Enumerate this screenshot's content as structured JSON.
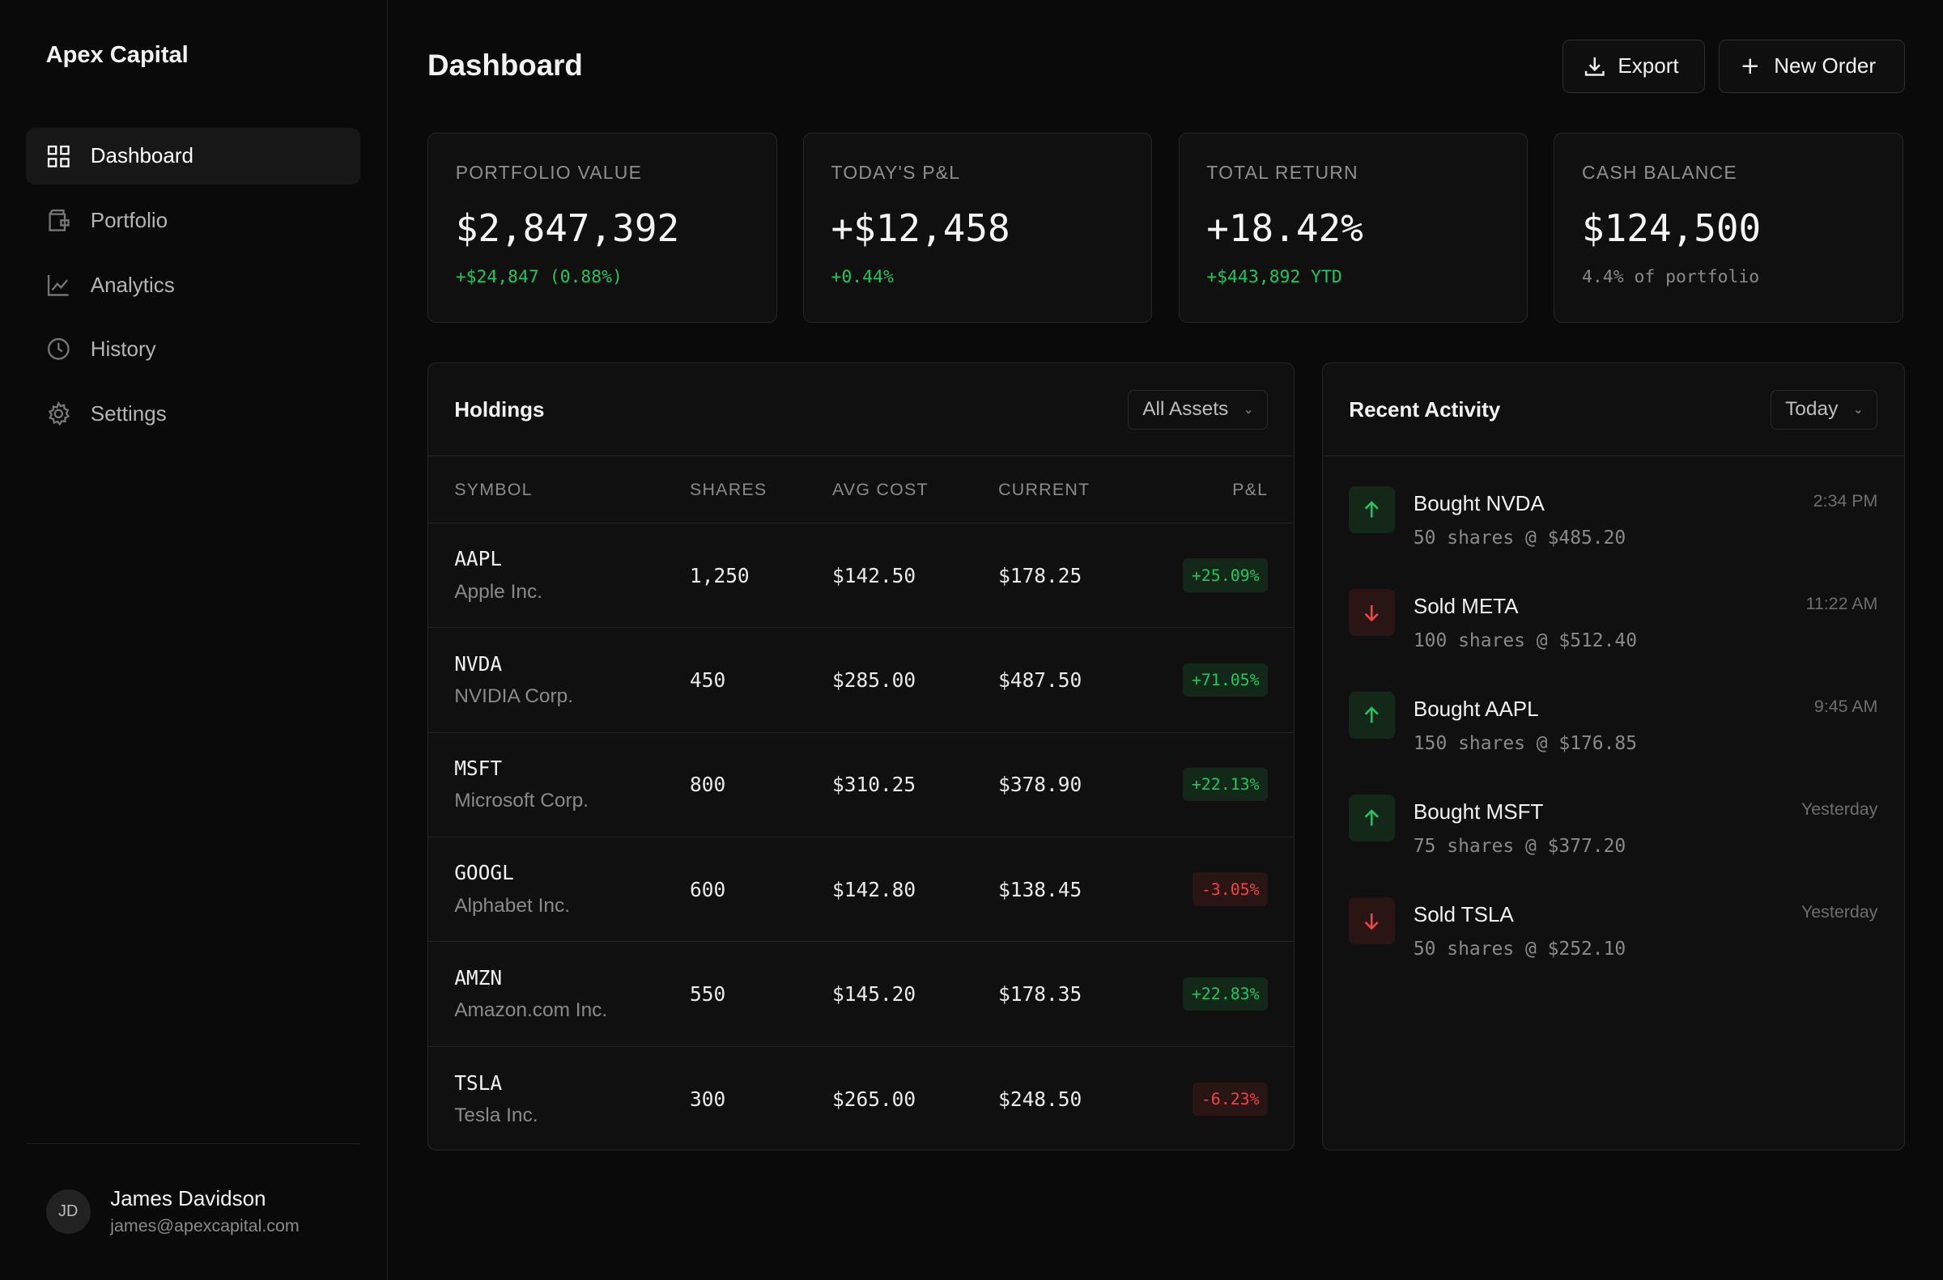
{
  "app": {
    "brand": "Apex Capital"
  },
  "sidebar": {
    "items": [
      {
        "label": "Dashboard",
        "icon": "grid-icon"
      },
      {
        "label": "Portfolio",
        "icon": "wallet-icon"
      },
      {
        "label": "Analytics",
        "icon": "chart-icon"
      },
      {
        "label": "History",
        "icon": "clock-icon"
      },
      {
        "label": "Settings",
        "icon": "gear-icon"
      }
    ],
    "user": {
      "initials": "JD",
      "name": "James Davidson",
      "email": "james@apexcapital.com"
    }
  },
  "header": {
    "title": "Dashboard",
    "export_label": "Export",
    "new_order_label": "New Order"
  },
  "stats": [
    {
      "label": "PORTFOLIO VALUE",
      "value": "$2,847,392",
      "sub": "+$24,847 (0.88%)"
    },
    {
      "label": "TODAY'S P&L",
      "value": "+$12,458",
      "sub": "+0.44%"
    },
    {
      "label": "TOTAL RETURN",
      "value": "+18.42%",
      "sub": "+$443,892 YTD"
    },
    {
      "label": "CASH BALANCE",
      "value": "$124,500",
      "sub": "4.4% of portfolio"
    }
  ],
  "holdings": {
    "title": "Holdings",
    "filter": "All Assets",
    "columns": [
      "SYMBOL",
      "SHARES",
      "AVG COST",
      "CURRENT",
      "P&L"
    ],
    "rows": [
      {
        "symbol": "AAPL",
        "name": "Apple Inc.",
        "shares": "1,250",
        "avg": "$142.50",
        "current": "$178.25",
        "pl": "+25.09%"
      },
      {
        "symbol": "NVDA",
        "name": "NVIDIA Corp.",
        "shares": "450",
        "avg": "$285.00",
        "current": "$487.50",
        "pl": "+71.05%"
      },
      {
        "symbol": "MSFT",
        "name": "Microsoft Corp.",
        "shares": "800",
        "avg": "$310.25",
        "current": "$378.90",
        "pl": "+22.13%"
      },
      {
        "symbol": "GOOGL",
        "name": "Alphabet Inc.",
        "shares": "600",
        "avg": "$142.80",
        "current": "$138.45",
        "pl": "-3.05%"
      },
      {
        "symbol": "AMZN",
        "name": "Amazon.com Inc.",
        "shares": "550",
        "avg": "$145.20",
        "current": "$178.35",
        "pl": "+22.83%"
      },
      {
        "symbol": "TSLA",
        "name": "Tesla Inc.",
        "shares": "300",
        "avg": "$265.00",
        "current": "$248.50",
        "pl": "-6.23%"
      }
    ]
  },
  "activity": {
    "title": "Recent Activity",
    "filter": "Today",
    "items": [
      {
        "title": "Bought NVDA",
        "detail": "50 shares @ $485.20",
        "time": "2:34 PM",
        "type": "buy"
      },
      {
        "title": "Sold META",
        "detail": "100 shares @ $512.40",
        "time": "11:22 AM",
        "type": "sell"
      },
      {
        "title": "Bought AAPL",
        "detail": "150 shares @ $176.85",
        "time": "9:45 AM",
        "type": "buy"
      },
      {
        "title": "Bought MSFT",
        "detail": "75 shares @ $377.20",
        "time": "Yesterday",
        "type": "buy"
      },
      {
        "title": "Sold TSLA",
        "detail": "50 shares @ $252.10",
        "time": "Yesterday",
        "type": "sell"
      }
    ]
  },
  "colors": {
    "positive": "#22c55e",
    "negative": "#ef4444",
    "background": "#0a0a0a",
    "card": "#101010"
  }
}
